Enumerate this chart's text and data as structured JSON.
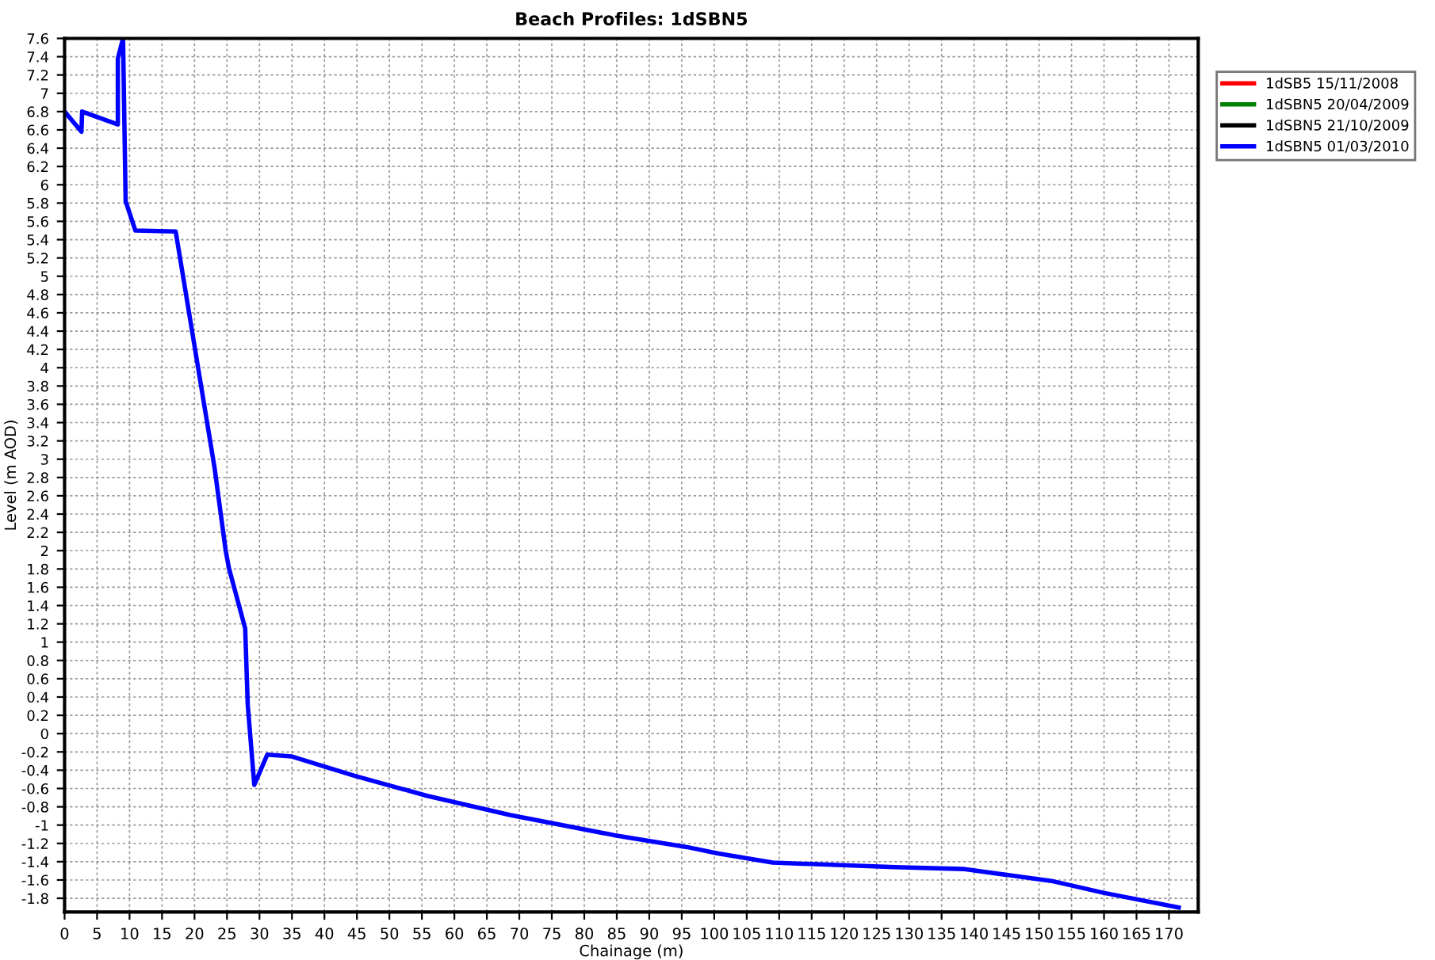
{
  "chart_data": {
    "type": "line",
    "title": "Beach Profiles: 1dSBN5",
    "xlabel": "Chainage (m)",
    "ylabel": "Level (m AOD)",
    "x": [
      0,
      2.6,
      2.7,
      8.2,
      8.2,
      9.0,
      9.4,
      10.9,
      17.1,
      23.1,
      24.8,
      25.3,
      27.8,
      28.2,
      29.2,
      31.2,
      35.0,
      44.6,
      55.8,
      68.6,
      84.6,
      95.8,
      100.6,
      109.0,
      127.8,
      138.3,
      151.9,
      159.9,
      171.5
    ],
    "series": [
      {
        "name": "1dSB5 15/11/2008",
        "color": "#ff0000",
        "values": [
          null,
          null,
          null,
          null,
          null,
          null,
          null,
          null,
          null,
          null,
          null,
          null,
          null,
          null,
          null,
          null,
          null,
          null,
          null,
          null,
          null,
          null,
          null,
          null,
          null,
          null,
          null,
          null,
          null
        ]
      },
      {
        "name": "1dSBN5 20/04/2009",
        "color": "#008000",
        "values": [
          null,
          null,
          null,
          null,
          null,
          null,
          null,
          null,
          null,
          null,
          null,
          null,
          null,
          null,
          null,
          null,
          null,
          null,
          null,
          null,
          null,
          null,
          null,
          null,
          null,
          null,
          null,
          null,
          null
        ]
      },
      {
        "name": "1dSBN5 21/10/2009",
        "color": "#000000",
        "values": [
          null,
          null,
          null,
          null,
          null,
          null,
          null,
          null,
          null,
          null,
          null,
          null,
          null,
          null,
          null,
          null,
          null,
          null,
          null,
          null,
          null,
          null,
          null,
          null,
          null,
          null,
          null,
          null,
          null
        ]
      },
      {
        "name": "1dSBN5 01/03/2010",
        "color": "#0000ff",
        "values": [
          6.8,
          6.58,
          6.8,
          6.66,
          7.38,
          7.6,
          5.82,
          5.5,
          5.49,
          2.9,
          2.0,
          1.81,
          1.15,
          0.31,
          -0.56,
          -0.23,
          -0.25,
          -0.46,
          -0.68,
          -0.89,
          -1.11,
          -1.24,
          -1.31,
          -1.41,
          -1.46,
          -1.48,
          -1.61,
          -1.74,
          -1.9
        ]
      }
    ],
    "xlim": [
      0,
      174.5
    ],
    "xticks": [
      0,
      5,
      10,
      15,
      20,
      25,
      30,
      35,
      40,
      45,
      50,
      55,
      60,
      65,
      70,
      75,
      80,
      85,
      90,
      95,
      100,
      105,
      110,
      115,
      120,
      125,
      130,
      135,
      140,
      145,
      150,
      155,
      160,
      165,
      170
    ],
    "ylim": [
      -1.95,
      7.6
    ],
    "yticks": [
      -1.8,
      -1.6,
      -1.4,
      -1.2,
      -1,
      -0.8,
      -0.6,
      -0.4,
      -0.2,
      0,
      0.2,
      0.4,
      0.6,
      0.8,
      1,
      1.2,
      1.4,
      1.6,
      1.8,
      2,
      2.2,
      2.4,
      2.6,
      2.8,
      3,
      3.2,
      3.4,
      3.6,
      3.8,
      4,
      4.2,
      4.4,
      4.6,
      4.8,
      5,
      5.2,
      5.4,
      5.6,
      5.8,
      6,
      6.2,
      6.4,
      6.6,
      6.8,
      7,
      7.2,
      7.4,
      7.6
    ],
    "grid": true,
    "legend": "right",
    "marker": "none",
    "line_style": "solid"
  }
}
